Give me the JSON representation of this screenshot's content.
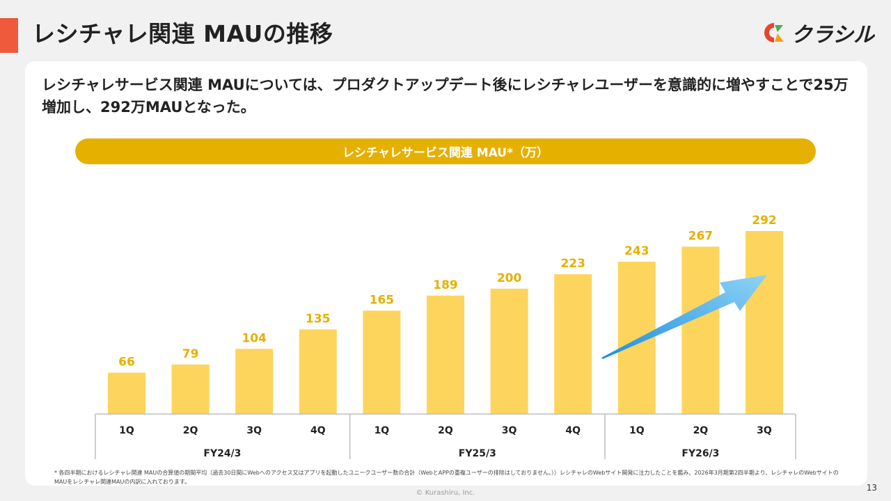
{
  "header": {
    "title": "レシチャレ関連 MAUの推移",
    "logo_text": "クラシル",
    "logo_colors": {
      "red": "#e8452f",
      "green": "#4caf50",
      "orange": "#f4a21d"
    }
  },
  "lead_text": "レシチャレサービス関連 MAUについては、プロダクトアップデート後にレシチャレユーザーを意識的に増やすことで25万増加し、292万MAUとなった。",
  "chart_banner": "レシチャレサービス関連 MAU*（万）",
  "chart_data": {
    "type": "bar",
    "title": "レシチャレサービス関連 MAU*（万）",
    "categories": [
      "1Q",
      "2Q",
      "3Q",
      "4Q",
      "1Q",
      "2Q",
      "3Q",
      "4Q",
      "1Q",
      "2Q",
      "3Q"
    ],
    "groups": [
      {
        "label": "FY24/3",
        "count": 4
      },
      {
        "label": "FY25/3",
        "count": 4
      },
      {
        "label": "FY26/3",
        "count": 3
      }
    ],
    "values": [
      66,
      79,
      104,
      135,
      165,
      189,
      200,
      223,
      243,
      267,
      292
    ],
    "ylim": [
      0,
      300
    ],
    "bar_color": "#fdd55c",
    "label_color": "#e6b000",
    "annotation": "trend-arrow-up"
  },
  "footnote": "* 各四半期におけるレシチャレ関連 MAUの合算値の期間平均（過去30日間にWebへのアクセス又はアプリを起動したユニークユーザー数の合計（WebとAPPの重複ユーザーの排除はしておりません。））レシチャレのWebサイト開発に注力したことを鑑み、2026年3月期第2四半期より、レシチャレのWebサイトのMAUをレシチャレ関連MAUの内訳に入れております。",
  "copyright": "© Kurashiru, Inc.",
  "page_number": "13"
}
